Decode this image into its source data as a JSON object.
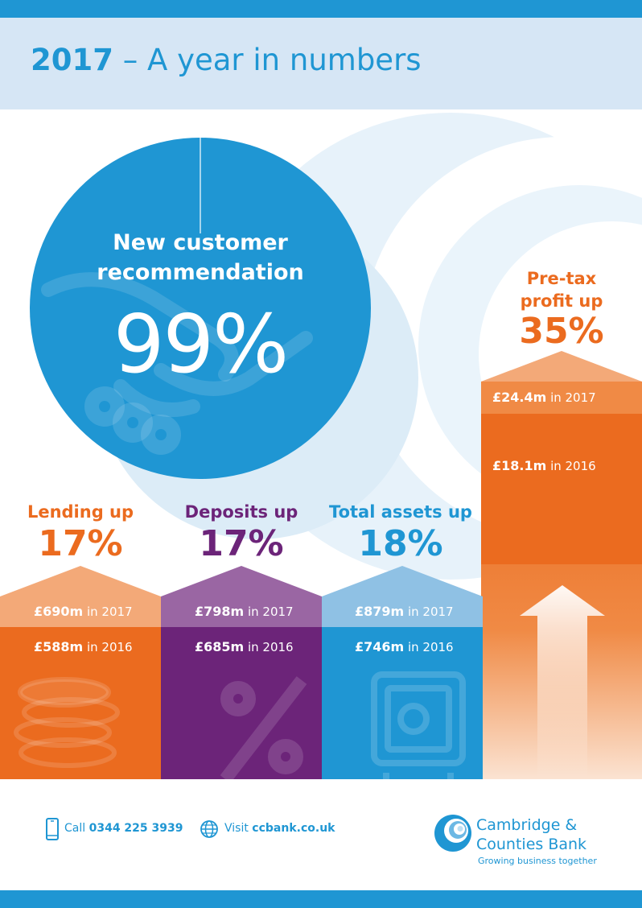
{
  "header": {
    "year": "2017",
    "title_rest": "– A year in numbers"
  },
  "colors": {
    "blue": "#1f96d3",
    "orange": "#eb6b1f",
    "purple": "#6c2479",
    "light_blue_bg": "#d6e6f5"
  },
  "recommendation": {
    "line1": "New customer",
    "line2": "recommendation",
    "value": "99%"
  },
  "stats": [
    {
      "head": "Lending up",
      "pct": "17%",
      "row_2017_value": "£690m",
      "row_2017_suffix": "in 2017",
      "row_2016_value": "£588m",
      "row_2016_suffix": "in 2016",
      "icon": "coins-icon"
    },
    {
      "head": "Deposits up",
      "pct": "17%",
      "row_2017_value": "£798m",
      "row_2017_suffix": "in 2017",
      "row_2016_value": "£685m",
      "row_2016_suffix": "in 2016",
      "icon": "percent-icon"
    },
    {
      "head": "Total assets up",
      "pct": "18%",
      "row_2017_value": "£879m",
      "row_2017_suffix": "in 2017",
      "row_2016_value": "£746m",
      "row_2016_suffix": "in 2016",
      "icon": "safe-icon"
    }
  ],
  "profit": {
    "head1": "Pre-tax",
    "head2": "profit up",
    "pct": "35%",
    "row_2017_value": "£24.4m",
    "row_2017_suffix": "in 2017",
    "row_2016_value": "£18.1m",
    "row_2016_suffix": "in 2016"
  },
  "footer": {
    "call_label": "Call",
    "call_number": "0344 225 3939",
    "visit_label": "Visit",
    "visit_url": "ccbank.co.uk"
  },
  "brand": {
    "line1": "Cambridge &",
    "line2": "Counties Bank",
    "tagline": "Growing business together"
  }
}
